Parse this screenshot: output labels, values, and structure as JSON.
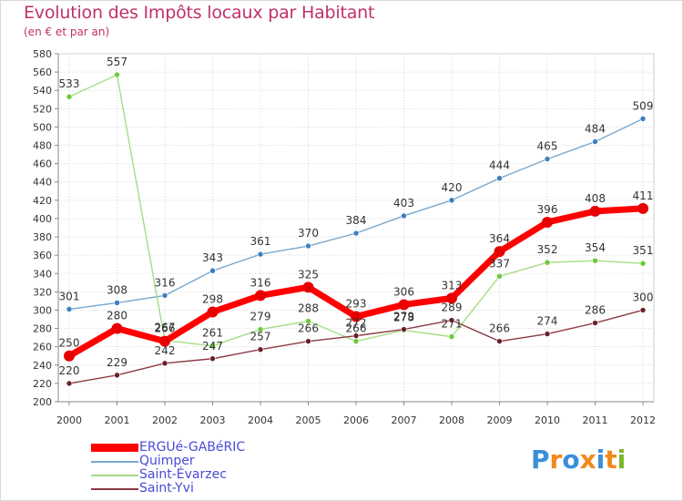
{
  "chart_data": {
    "type": "line",
    "title": "Evolution des Impôts locaux par Habitant",
    "subtitle": "(en € et par an)",
    "xlabel": "",
    "ylabel": "",
    "x": [
      "2000",
      "2001",
      "2002",
      "2003",
      "2004",
      "2005",
      "2006",
      "2007",
      "2008",
      "2009",
      "2010",
      "2011",
      "2012"
    ],
    "ylim": [
      200,
      580
    ],
    "yticks": [
      200,
      220,
      240,
      260,
      280,
      300,
      320,
      340,
      360,
      380,
      400,
      420,
      440,
      460,
      480,
      500,
      520,
      540,
      560,
      580
    ],
    "grid": true,
    "series": [
      {
        "name": "Quimper",
        "color": "#7aa8cc",
        "marker_color": "#3b7fc0",
        "values": [
          301,
          308,
          316,
          343,
          361,
          370,
          384,
          403,
          420,
          444,
          465,
          484,
          509
        ],
        "labels": [
          "301",
          "308",
          "316",
          "343",
          "361",
          "370",
          "384",
          "403",
          "420",
          "444",
          "465",
          "484",
          "509"
        ]
      },
      {
        "name": "Saint-Évarzec",
        "color": "#a6dd84",
        "marker_color": "#6cc838",
        "values": [
          533,
          557,
          267,
          261,
          279,
          288,
          266,
          278,
          271,
          337,
          352,
          354,
          351
        ],
        "labels": [
          "533",
          "557",
          "267",
          "261",
          "279",
          "288",
          "266",
          "278",
          "271",
          "337",
          "352",
          "354",
          "351"
        ]
      },
      {
        "name": "Saint-Yvi",
        "color": "#8c3a44",
        "marker_color": "#6b1f28",
        "values": [
          220,
          229,
          242,
          247,
          257,
          266,
          272,
          279,
          289,
          266,
          274,
          286,
          300
        ],
        "labels": [
          "220",
          "229",
          "242",
          "247",
          "257",
          "266",
          "272",
          "279",
          "289",
          "266",
          "274",
          "286",
          "300"
        ]
      },
      {
        "name": "ERGUé-GABéRIC",
        "color": "#ff0000",
        "marker_color": "#e80000",
        "values": [
          250,
          280,
          266,
          298,
          316,
          325,
          293,
          306,
          313,
          364,
          396,
          408,
          411
        ],
        "labels": [
          "250",
          "280",
          "266",
          "298",
          "316",
          "325",
          "293",
          "306",
          "313",
          "364",
          "396",
          "408",
          "411"
        ]
      }
    ],
    "legend": {
      "placement": "bottom-left",
      "entries": [
        "ERGUé-GABéRIC",
        "Quimper",
        "Saint-Évarzec",
        "Saint-Yvi"
      ]
    }
  },
  "watermark": {
    "text": "Proxiti",
    "colors": [
      "#3a8fd8",
      "#f08a1c",
      "#3a8fd8",
      "#f08a1c",
      "#3a8fd8",
      "#f08a1c",
      "#7ab828"
    ]
  }
}
